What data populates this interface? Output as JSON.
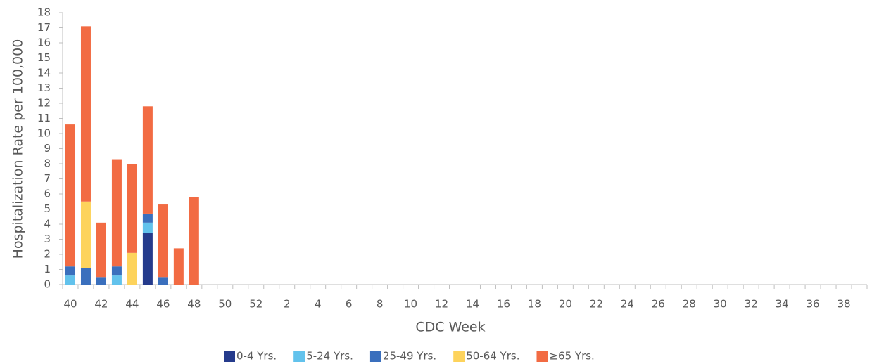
{
  "chart_data": {
    "type": "stacked-bar",
    "x_label": "CDC Week",
    "y_label": "Hospitalization Rate per 100,000",
    "categories": [
      "40",
      null,
      "42",
      null,
      "44",
      null,
      "46",
      null,
      "48",
      null,
      "50",
      null,
      "52",
      null,
      "2",
      null,
      "4",
      null,
      "6",
      null,
      "8",
      null,
      "10",
      null,
      "12",
      null,
      "14",
      null,
      "16",
      null,
      "18",
      null,
      "20",
      null,
      "22",
      null,
      "24",
      null,
      "26",
      null,
      "28",
      null,
      "30",
      null,
      "32",
      null,
      "34",
      null,
      "36",
      null,
      "38",
      null
    ],
    "series": [
      {
        "name": "0-4 Yrs.",
        "color": "#253b8c",
        "values": [
          0,
          0,
          0,
          0,
          0,
          3.4,
          0,
          0,
          0,
          null,
          null,
          null,
          null,
          null,
          null,
          null,
          null,
          null,
          null,
          null,
          null,
          null,
          null,
          null,
          null,
          null,
          null,
          null,
          null,
          null,
          null,
          null,
          null,
          null,
          null,
          null,
          null,
          null,
          null,
          null,
          null,
          null,
          null,
          null,
          null,
          null,
          null,
          null,
          null,
          null,
          null,
          null
        ]
      },
      {
        "name": "5-24 Yrs.",
        "color": "#62c2ec",
        "values": [
          0.6,
          0,
          0,
          0.6,
          0,
          0.7,
          0,
          0,
          0,
          null,
          null,
          null,
          null,
          null,
          null,
          null,
          null,
          null,
          null,
          null,
          null,
          null,
          null,
          null,
          null,
          null,
          null,
          null,
          null,
          null,
          null,
          null,
          null,
          null,
          null,
          null,
          null,
          null,
          null,
          null,
          null,
          null,
          null,
          null,
          null,
          null,
          null,
          null,
          null,
          null,
          null,
          null
        ]
      },
      {
        "name": "25-49 Yrs.",
        "color": "#3a6fbd",
        "values": [
          0.6,
          1.1,
          0.5,
          0.6,
          0,
          0.6,
          0.5,
          0,
          0,
          null,
          null,
          null,
          null,
          null,
          null,
          null,
          null,
          null,
          null,
          null,
          null,
          null,
          null,
          null,
          null,
          null,
          null,
          null,
          null,
          null,
          null,
          null,
          null,
          null,
          null,
          null,
          null,
          null,
          null,
          null,
          null,
          null,
          null,
          null,
          null,
          null,
          null,
          null,
          null,
          null,
          null,
          null
        ]
      },
      {
        "name": "50-64 Yrs.",
        "color": "#fdd35c",
        "values": [
          0,
          4.4,
          0,
          0,
          2.1,
          0,
          0,
          0,
          0,
          null,
          null,
          null,
          null,
          null,
          null,
          null,
          null,
          null,
          null,
          null,
          null,
          null,
          null,
          null,
          null,
          null,
          null,
          null,
          null,
          null,
          null,
          null,
          null,
          null,
          null,
          null,
          null,
          null,
          null,
          null,
          null,
          null,
          null,
          null,
          null,
          null,
          null,
          null,
          null,
          null,
          null,
          null
        ]
      },
      {
        "name": "≥65 Yrs.",
        "color": "#f26b43",
        "values": [
          9.4,
          11.6,
          3.6,
          7.1,
          5.9,
          7.1,
          4.8,
          2.4,
          5.8,
          null,
          null,
          null,
          null,
          null,
          null,
          null,
          null,
          null,
          null,
          null,
          null,
          null,
          null,
          null,
          null,
          null,
          null,
          null,
          null,
          null,
          null,
          null,
          null,
          null,
          null,
          null,
          null,
          null,
          null,
          null,
          null,
          null,
          null,
          null,
          null,
          null,
          null,
          null,
          null,
          null,
          null,
          null
        ]
      }
    ],
    "ylim": [
      0,
      18
    ],
    "yticks": [
      0,
      1,
      2,
      3,
      4,
      5,
      6,
      7,
      8,
      9,
      10,
      11,
      12,
      13,
      14,
      15,
      16,
      17,
      18
    ],
    "grid": false,
    "legend": "bottom"
  }
}
